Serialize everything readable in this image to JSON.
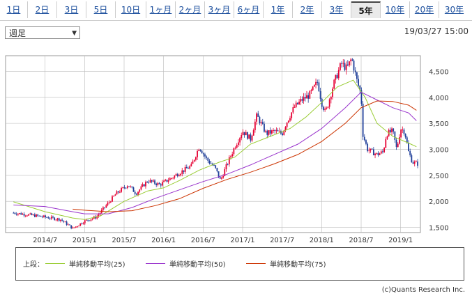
{
  "tabs": [
    {
      "label": "1日"
    },
    {
      "label": "2日"
    },
    {
      "label": "3日"
    },
    {
      "label": "5日"
    },
    {
      "label": "10日"
    },
    {
      "label": "1ヶ月"
    },
    {
      "label": "2ヶ月"
    },
    {
      "label": "3ヶ月"
    },
    {
      "label": "6ヶ月"
    },
    {
      "label": "1年"
    },
    {
      "label": "2年"
    },
    {
      "label": "3年"
    },
    {
      "label": "5年"
    },
    {
      "label": "10年"
    },
    {
      "label": "20年"
    },
    {
      "label": "30年"
    }
  ],
  "active_tab": "5年",
  "period_select": {
    "value": "週足"
  },
  "timestamp": "19/03/27 15:00",
  "legend": {
    "label": "上段：",
    "items": [
      {
        "name": "単純移動平均(25)",
        "color": "#99cc33"
      },
      {
        "name": "単純移動平均(50)",
        "color": "#9933cc"
      },
      {
        "name": "単純移動平均(75)",
        "color": "#cc3300"
      }
    ]
  },
  "copyright": "(c)Quants Research Inc.",
  "colors": {
    "up": "#e60033",
    "down": "#1f3f99",
    "grid": "#bbbbbb"
  },
  "chart_data": {
    "type": "candlestick",
    "x_tick_labels": [
      "2014/7",
      "2015/1",
      "2015/7",
      "2016/1",
      "2016/7",
      "2017/1",
      "2017/7",
      "2018/1",
      "2018/7",
      "2019/1"
    ],
    "x_range_months": [
      2014.0,
      2019.25
    ],
    "y_ticks": [
      1500,
      2000,
      2500,
      3000,
      3500,
      4000,
      4500
    ],
    "y_tick_labels": [
      "1,500",
      "2,000",
      "2,500",
      "3,000",
      "3,500",
      "4,000",
      "4,500"
    ],
    "ylim": [
      1400,
      4800
    ],
    "price_path": [
      [
        2014.1,
        1780
      ],
      [
        2014.4,
        1720
      ],
      [
        2014.7,
        1650
      ],
      [
        2014.85,
        1480
      ],
      [
        2015.0,
        1620
      ],
      [
        2015.15,
        1700
      ],
      [
        2015.25,
        1880
      ],
      [
        2015.4,
        2150
      ],
      [
        2015.55,
        2320
      ],
      [
        2015.65,
        2150
      ],
      [
        2015.8,
        2400
      ],
      [
        2015.95,
        2320
      ],
      [
        2016.1,
        2450
      ],
      [
        2016.2,
        2550
      ],
      [
        2016.35,
        2680
      ],
      [
        2016.45,
        3050
      ],
      [
        2016.55,
        2800
      ],
      [
        2016.65,
        2650
      ],
      [
        2016.72,
        2400
      ],
      [
        2016.8,
        2700
      ],
      [
        2016.9,
        3050
      ],
      [
        2017.0,
        3350
      ],
      [
        2017.1,
        3200
      ],
      [
        2017.18,
        3650
      ],
      [
        2017.3,
        3300
      ],
      [
        2017.4,
        3350
      ],
      [
        2017.5,
        3300
      ],
      [
        2017.55,
        3500
      ],
      [
        2017.65,
        3800
      ],
      [
        2017.75,
        3950
      ],
      [
        2017.85,
        4050
      ],
      [
        2017.95,
        4300
      ],
      [
        2018.0,
        3900
      ],
      [
        2018.05,
        3700
      ],
      [
        2018.15,
        4250
      ],
      [
        2018.25,
        4650
      ],
      [
        2018.32,
        4550
      ],
      [
        2018.38,
        4750
      ],
      [
        2018.45,
        4300
      ],
      [
        2018.5,
        4050
      ],
      [
        2018.52,
        3300
      ],
      [
        2018.58,
        3000
      ],
      [
        2018.7,
        2900
      ],
      [
        2018.78,
        2950
      ],
      [
        2018.82,
        3300
      ],
      [
        2018.9,
        3350
      ],
      [
        2018.95,
        3000
      ],
      [
        2019.0,
        3400
      ],
      [
        2019.05,
        3350
      ],
      [
        2019.1,
        2950
      ],
      [
        2019.15,
        2750
      ],
      [
        2019.22,
        2720
      ]
    ],
    "series": [
      {
        "name": "単純移動平均(25)",
        "color": "#99cc33",
        "points": [
          [
            2014.1,
            1990
          ],
          [
            2014.5,
            1800
          ],
          [
            2014.85,
            1680
          ],
          [
            2015.0,
            1650
          ],
          [
            2015.2,
            1720
          ],
          [
            2015.5,
            2000
          ],
          [
            2015.8,
            2200
          ],
          [
            2016.0,
            2260
          ],
          [
            2016.2,
            2400
          ],
          [
            2016.45,
            2600
          ],
          [
            2016.7,
            2750
          ],
          [
            2016.9,
            2850
          ],
          [
            2017.1,
            3100
          ],
          [
            2017.4,
            3280
          ],
          [
            2017.6,
            3400
          ],
          [
            2017.8,
            3620
          ],
          [
            2018.0,
            3900
          ],
          [
            2018.2,
            4200
          ],
          [
            2018.4,
            4330
          ],
          [
            2018.55,
            4000
          ],
          [
            2018.7,
            3500
          ],
          [
            2018.9,
            3250
          ],
          [
            2019.1,
            3120
          ],
          [
            2019.2,
            3050
          ]
        ]
      },
      {
        "name": "単純移動平均(50)",
        "color": "#9933cc",
        "points": [
          [
            2014.1,
            1930
          ],
          [
            2014.5,
            1900
          ],
          [
            2014.85,
            1800
          ],
          [
            2015.0,
            1760
          ],
          [
            2015.3,
            1760
          ],
          [
            2015.6,
            1880
          ],
          [
            2015.9,
            2060
          ],
          [
            2016.2,
            2220
          ],
          [
            2016.5,
            2380
          ],
          [
            2016.8,
            2520
          ],
          [
            2017.1,
            2700
          ],
          [
            2017.4,
            2900
          ],
          [
            2017.7,
            3100
          ],
          [
            2018.0,
            3400
          ],
          [
            2018.3,
            3800
          ],
          [
            2018.5,
            4100
          ],
          [
            2018.7,
            3950
          ],
          [
            2018.9,
            3800
          ],
          [
            2019.1,
            3700
          ],
          [
            2019.2,
            3550
          ]
        ]
      },
      {
        "name": "単純移動平均(75)",
        "color": "#cc3300",
        "points": [
          [
            2014.85,
            1850
          ],
          [
            2015.0,
            1830
          ],
          [
            2015.3,
            1800
          ],
          [
            2015.6,
            1820
          ],
          [
            2015.9,
            1920
          ],
          [
            2016.2,
            2050
          ],
          [
            2016.5,
            2250
          ],
          [
            2016.8,
            2420
          ],
          [
            2017.1,
            2560
          ],
          [
            2017.4,
            2720
          ],
          [
            2017.7,
            2900
          ],
          [
            2018.0,
            3150
          ],
          [
            2018.3,
            3500
          ],
          [
            2018.5,
            3800
          ],
          [
            2018.7,
            3930
          ],
          [
            2018.9,
            3920
          ],
          [
            2019.1,
            3850
          ],
          [
            2019.2,
            3750
          ]
        ]
      }
    ]
  }
}
